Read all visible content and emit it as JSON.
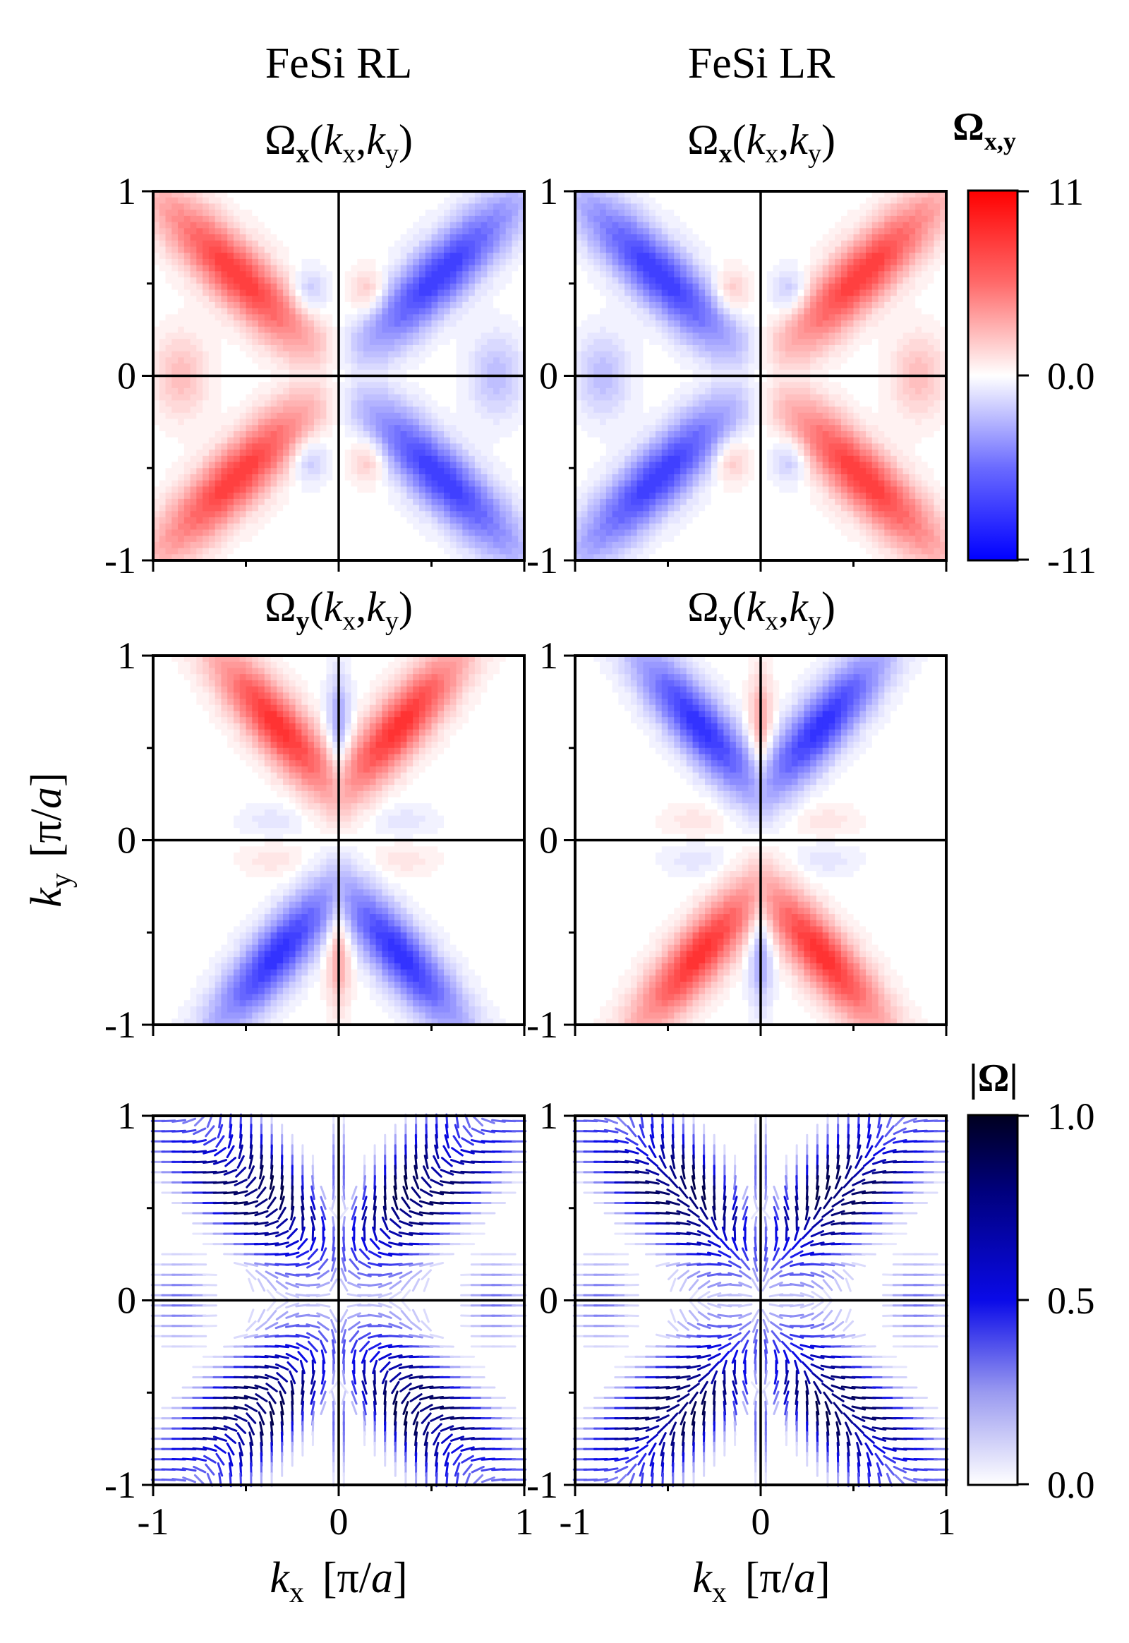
{
  "figure": {
    "column_titles": [
      "FeSi RL",
      "FeSi LR"
    ],
    "row_titles": {
      "omega_x": {
        "base": "Ω",
        "sub": "x",
        "open": "(",
        "kx": "k",
        "kx_sub": "x",
        "comma": ",",
        "ky": "k",
        "ky_sub": "y",
        "close": ")"
      },
      "omega_y": {
        "base": "Ω",
        "sub": "y",
        "open": "(",
        "kx": "k",
        "kx_sub": "x",
        "comma": ",",
        "ky": "k",
        "ky_sub": "y",
        "close": ")"
      }
    },
    "xlabel": {
      "k": "k",
      "sub": "x",
      "unit_open": "[π/",
      "unit_a": "a",
      "unit_close": "]"
    },
    "ylabel": {
      "k": "k",
      "sub": "y",
      "unit_open": "[π/",
      "unit_a": "a",
      "unit_close": "]"
    },
    "tick_labels": {
      "neg": "-1",
      "zero": "0",
      "pos": "1"
    },
    "colorbar_1": {
      "title_base": "Ω",
      "title_sub": "x,y",
      "labels": [
        "11",
        "0.0",
        "-11"
      ],
      "range": [
        -11,
        11
      ],
      "colors": {
        "low": "#0000ff",
        "mid": "#ffffff",
        "high": "#ff0000"
      }
    },
    "colorbar_2": {
      "title": "|Ω|",
      "labels": [
        "1.0",
        "0.5",
        "0.0"
      ],
      "range": [
        0,
        1
      ],
      "colors": {
        "low": "#ffffff",
        "mid": "#0000ee",
        "high": "#000020"
      }
    }
  },
  "chart_data": [
    {
      "type": "heatmap",
      "name": "FeSi RL Ωx",
      "x_range": [
        -1,
        1
      ],
      "y_range": [
        -1,
        1
      ],
      "value_range": [
        -11,
        11
      ],
      "description_values": {
        "lobe_peak_red_top_left": 8,
        "lobe_peak_blue_top_right": -8,
        "inner_blob": 2.5
      }
    },
    {
      "type": "heatmap",
      "name": "FeSi LR Ωx",
      "x_range": [
        -1,
        1
      ],
      "y_range": [
        -1,
        1
      ],
      "value_range": [
        -11,
        11
      ],
      "description_values": {
        "lobe_peak_blue_top_left": -8,
        "lobe_peak_red_top_right": 8,
        "inner_blob": 2.5
      }
    },
    {
      "type": "heatmap",
      "name": "FeSi RL Ωy",
      "x_range": [
        -1,
        1
      ],
      "y_range": [
        -1,
        1
      ],
      "value_range": [
        -11,
        11
      ],
      "description_values": {
        "top_lobes": 9,
        "bottom_lobes": -9,
        "center_stripe": -4
      }
    },
    {
      "type": "heatmap",
      "name": "FeSi LR Ωy",
      "x_range": [
        -1,
        1
      ],
      "y_range": [
        -1,
        1
      ],
      "value_range": [
        -11,
        11
      ],
      "description_values": {
        "top_lobes": -9,
        "bottom_lobes": 9,
        "center_stripe": 4
      }
    },
    {
      "type": "scatter",
      "name": "FeSi RL |Ω| vector field",
      "x_range": [
        -1,
        1
      ],
      "y_range": [
        -1,
        1
      ],
      "value_range": [
        0,
        1
      ],
      "grid_spacing": 0.05
    },
    {
      "type": "scatter",
      "name": "FeSi LR |Ω| vector field",
      "x_range": [
        -1,
        1
      ],
      "y_range": [
        -1,
        1
      ],
      "value_range": [
        0,
        1
      ],
      "grid_spacing": 0.05
    }
  ]
}
